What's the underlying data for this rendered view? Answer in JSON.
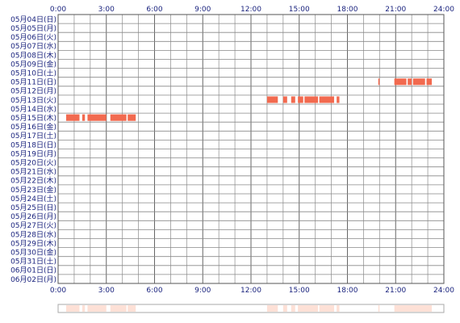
{
  "chart_data": {
    "type": "heatmap",
    "x_ticks": [
      "0:00",
      "3:00",
      "6:00",
      "9:00",
      "12:00",
      "15:00",
      "18:00",
      "21:00",
      "24:00"
    ],
    "x_range_hours": [
      0,
      24
    ],
    "grid": true,
    "rows": [
      "05月04日(日)",
      "05月05日(月)",
      "05月06日(火)",
      "05月07日(水)",
      "05月08日(木)",
      "05月09日(金)",
      "05月10日(土)",
      "05月11日(日)",
      "05月12日(月)",
      "05月13日(火)",
      "05月14日(水)",
      "05月15日(木)",
      "05月16日(金)",
      "05月17日(土)",
      "05月18日(日)",
      "05月19日(月)",
      "05月20日(火)",
      "05月21日(水)",
      "05月22日(木)",
      "05月23日(金)",
      "05月24日(土)",
      "05月25日(日)",
      "05月26日(月)",
      "05月27日(火)",
      "05月28日(水)",
      "05月29日(木)",
      "05月30日(金)",
      "05月31日(土)",
      "06月01日(日)",
      "06月02日(月)"
    ],
    "active_color": "#f26a4f",
    "summary_color": "#fde0d6",
    "segments": [
      {
        "row": 7,
        "start": 19.92,
        "end": 20.0
      },
      {
        "row": 7,
        "start": 20.92,
        "end": 21.67
      },
      {
        "row": 7,
        "start": 21.75,
        "end": 22.0
      },
      {
        "row": 7,
        "start": 22.08,
        "end": 22.83
      },
      {
        "row": 7,
        "start": 22.92,
        "end": 23.25
      },
      {
        "row": 9,
        "start": 13.0,
        "end": 13.67
      },
      {
        "row": 9,
        "start": 14.0,
        "end": 14.25
      },
      {
        "row": 9,
        "start": 14.5,
        "end": 14.75
      },
      {
        "row": 9,
        "start": 14.92,
        "end": 15.25
      },
      {
        "row": 9,
        "start": 15.33,
        "end": 16.17
      },
      {
        "row": 9,
        "start": 16.25,
        "end": 17.17
      },
      {
        "row": 9,
        "start": 17.33,
        "end": 17.5
      },
      {
        "row": 11,
        "start": 0.5,
        "end": 1.33
      },
      {
        "row": 11,
        "start": 1.5,
        "end": 1.67
      },
      {
        "row": 11,
        "start": 1.83,
        "end": 3.0
      },
      {
        "row": 11,
        "start": 3.25,
        "end": 4.25
      },
      {
        "row": 11,
        "start": 4.33,
        "end": 4.83
      }
    ],
    "summary_segments": [
      {
        "start": 0.5,
        "end": 1.33
      },
      {
        "start": 1.5,
        "end": 1.67
      },
      {
        "start": 1.83,
        "end": 3.0
      },
      {
        "start": 3.25,
        "end": 4.25
      },
      {
        "start": 4.33,
        "end": 4.83
      },
      {
        "start": 13.0,
        "end": 13.67
      },
      {
        "start": 14.0,
        "end": 14.25
      },
      {
        "start": 14.5,
        "end": 14.75
      },
      {
        "start": 14.92,
        "end": 16.17
      },
      {
        "start": 16.25,
        "end": 17.17
      },
      {
        "start": 17.33,
        "end": 17.5
      },
      {
        "start": 19.92,
        "end": 20.0
      },
      {
        "start": 20.92,
        "end": 23.25
      }
    ]
  }
}
